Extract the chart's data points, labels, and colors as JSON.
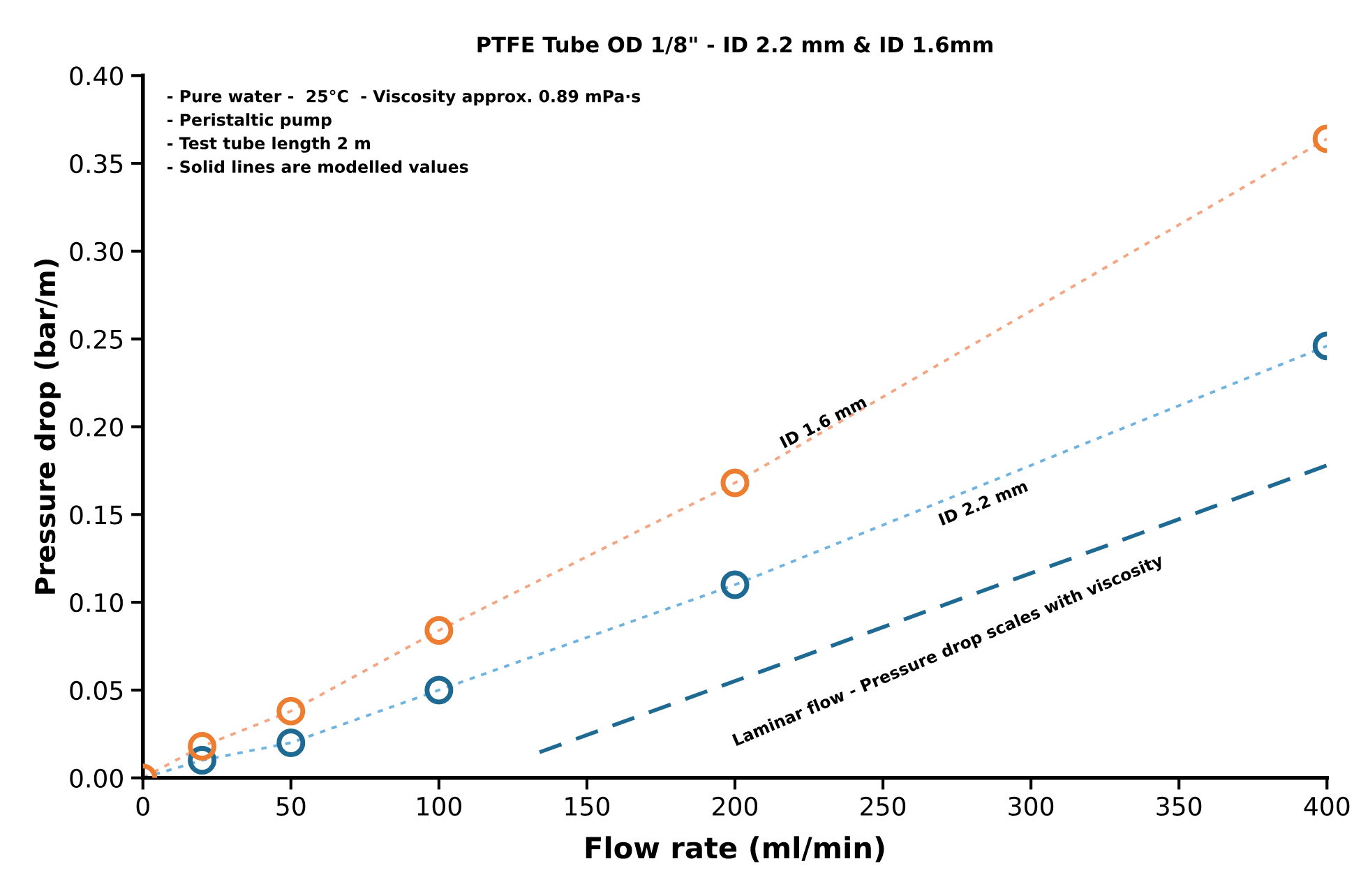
{
  "chart_data": {
    "type": "scatter",
    "title": "PTFE Tube OD 1/8\" - ID 2.2 mm & ID 1.6mm",
    "xlabel": "Flow rate (ml/min)",
    "ylabel": "Pressure drop (bar/m)",
    "x": [
      0,
      20,
      50,
      100,
      200,
      400
    ],
    "series": [
      {
        "type": "line",
        "color": "#f4a582",
        "line_style": "dotted",
        "marker": "none",
        "values": [
          0,
          0.018,
          0.038,
          0.084,
          0.168,
          0.364
        ]
      },
      {
        "type": "line",
        "color": "#6fb3e0",
        "line_style": "dotted",
        "marker": "none",
        "values": [
          0,
          0.01,
          0.02,
          0.05,
          0.11,
          0.246
        ]
      },
      {
        "type": "line",
        "color": "#1f6a92",
        "line_style": "dashed",
        "marker": "none",
        "x": [
          134,
          400
        ],
        "values": [
          0.0146,
          0.178
        ]
      },
      {
        "color": "#1f6a92",
        "marker": "circle",
        "values": [
          null,
          0.01,
          0.02,
          0.05,
          0.11,
          0.246
        ]
      },
      {
        "color": "#ed7d31",
        "marker": "circle",
        "values": [
          0,
          0.018,
          0.038,
          0.084,
          0.168,
          0.364
        ]
      }
    ],
    "xlim": [
      0,
      400
    ],
    "xticks": [
      0,
      50,
      100,
      150,
      200,
      250,
      300,
      350,
      400
    ],
    "ylim": [
      0,
      0.4
    ],
    "yticks": [
      {
        "value": 0,
        "label": "0.00"
      },
      {
        "value": 0.05,
        "label": "0.05"
      },
      {
        "value": 0.1,
        "label": "0.10"
      },
      {
        "value": 0.15,
        "label": "0.15"
      },
      {
        "value": 0.2,
        "label": "0.20"
      },
      {
        "value": 0.25,
        "label": "0.25"
      },
      {
        "value": 0.3,
        "label": "0.30"
      },
      {
        "value": 0.35,
        "label": "0.35"
      },
      {
        "value": 0.4,
        "label": "0.40"
      }
    ],
    "grid": false,
    "legend": false,
    "annotations": [
      "ID 1.6 mm",
      "ID 2.2 mm",
      "Laminar flow - Pressure drop scales with viscosity",
      "- Pure water -  25°C  - Viscosity approx. 0.89 mPa·s\n- Peristaltic pump\n- Test tube length 2 m\n- Solid lines are modelled values"
    ]
  }
}
